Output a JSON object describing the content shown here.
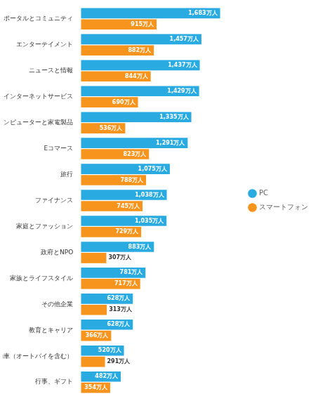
{
  "chart_data": {
    "type": "bar",
    "orientation": "horizontal",
    "categories": [
      "サーチ、ポータルとコミュニティ",
      "エンターテイメント",
      "ニュースと情報",
      "通信とインターネットサービス",
      "コンピューターと家電製品",
      "Eコマース",
      "旅行",
      "ファイナンス",
      "家庭とファッション",
      "政府とNPO",
      "家族とライフスタイル",
      "その他企業",
      "教育とキャリア",
      "自動車（オートバイを含む）",
      "行事、ギフト"
    ],
    "series": [
      {
        "name": "PC",
        "color": "#29ABE2",
        "values": [
          1683,
          1457,
          1437,
          1429,
          1335,
          1291,
          1075,
          1038,
          1035,
          883,
          781,
          628,
          628,
          520,
          482
        ],
        "value_labels": [
          "1,683万人",
          "1,457万人",
          "1,437万人",
          "1,429万人",
          "1,335万人",
          "1,291万人",
          "1,075万人",
          "1,038万人",
          "1,035万人",
          "883万人",
          "781万人",
          "628万人",
          "628万人",
          "520万人",
          "482万人"
        ]
      },
      {
        "name": "スマートフォン",
        "color": "#F7941D",
        "values": [
          915,
          882,
          844,
          690,
          536,
          823,
          788,
          745,
          729,
          307,
          717,
          313,
          366,
          291,
          354
        ],
        "value_labels": [
          "915万人",
          "882万人",
          "844万人",
          "690万人",
          "536万人",
          "823万人",
          "788万人",
          "745万人",
          "729万人",
          "307万人",
          "717万人",
          "313万人",
          "366万人",
          "291万人",
          "354万人"
        ]
      }
    ],
    "xlim": [
      0,
      1950
    ],
    "data_labels": true,
    "tick_labels": "y",
    "grid": false,
    "legend": "right"
  }
}
